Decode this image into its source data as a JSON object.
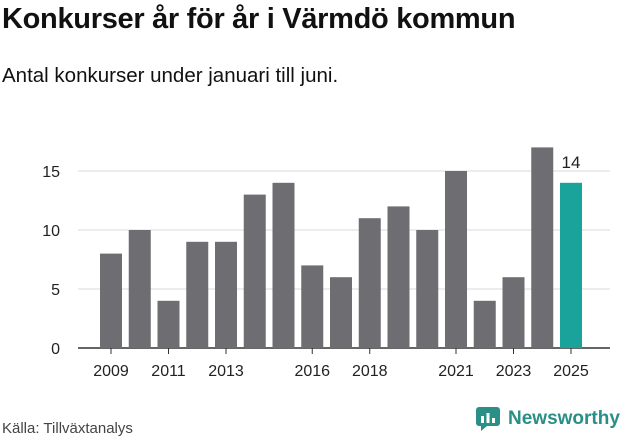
{
  "header": {
    "title": "Konkurser år för år i Värmdö kommun",
    "subtitle": "Antal konkurser under januari till juni."
  },
  "footer": {
    "source": "Källa: Tillväxtanalys",
    "brand": "Newsworthy"
  },
  "colors": {
    "bar": "#6e6d72",
    "highlight": "#1aa39a",
    "grid": "#d9d9d9",
    "axis": "#333333",
    "brand": "#2a8f86"
  },
  "chart_data": {
    "type": "bar",
    "title": "Konkurser år för år i Värmdö kommun",
    "subtitle": "Antal konkurser under januari till juni.",
    "categories": [
      "2009",
      "2010",
      "2011",
      "2012",
      "2013",
      "2014",
      "2015",
      "2016",
      "2017",
      "2018",
      "2019",
      "2020",
      "2021",
      "2022",
      "2023",
      "2024",
      "2025"
    ],
    "values": [
      8,
      10,
      4,
      9,
      9,
      13,
      14,
      7,
      6,
      11,
      12,
      10,
      15,
      4,
      6,
      17,
      14
    ],
    "xticks": [
      "2009",
      "2011",
      "2013",
      "2016",
      "2018",
      "2021",
      "2023",
      "2025"
    ],
    "yticks": [
      0,
      5,
      10,
      15
    ],
    "ylim": [
      0,
      17
    ],
    "highlight": {
      "category": "2025",
      "label": "14"
    },
    "grid": true
  }
}
